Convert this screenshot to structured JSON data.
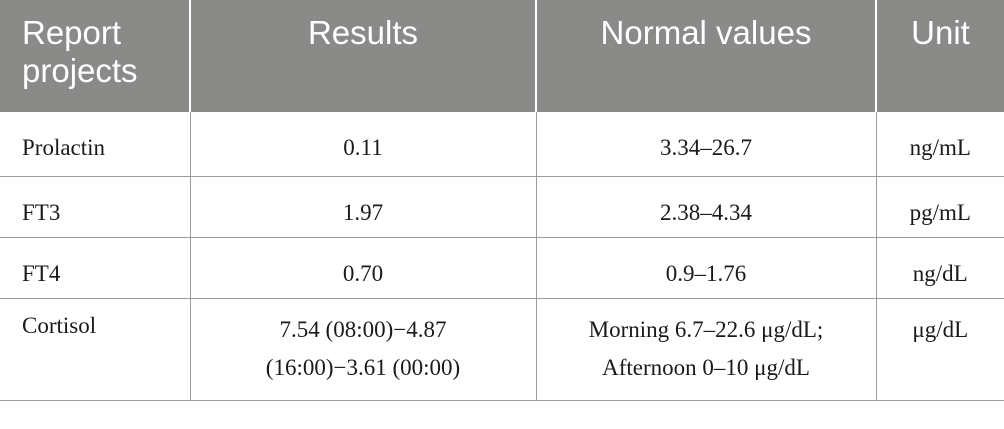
{
  "table": {
    "headers": [
      [
        "Report",
        "projects"
      ],
      [
        "Results"
      ],
      [
        "Normal values"
      ],
      [
        "Unit"
      ]
    ],
    "rows": [
      {
        "project": "Prolactin",
        "results": [
          "0.11"
        ],
        "normal": [
          "3.34–26.7"
        ],
        "unit": "ng/mL"
      },
      {
        "project": "FT3",
        "results": [
          "1.97"
        ],
        "normal": [
          "2.38–4.34"
        ],
        "unit": "pg/mL"
      },
      {
        "project": "FT4",
        "results": [
          "0.70"
        ],
        "normal": [
          "0.9–1.76"
        ],
        "unit": "ng/dL"
      },
      {
        "project": "Cortisol",
        "results": [
          "7.54 (08:00)−4.87",
          "(16:00)−3.61 (00:00)"
        ],
        "normal": [
          "Morning 6.7–22.6 μg/dL;",
          "Afternoon 0–10 μg/dL"
        ],
        "unit": "μg/dL"
      }
    ]
  }
}
